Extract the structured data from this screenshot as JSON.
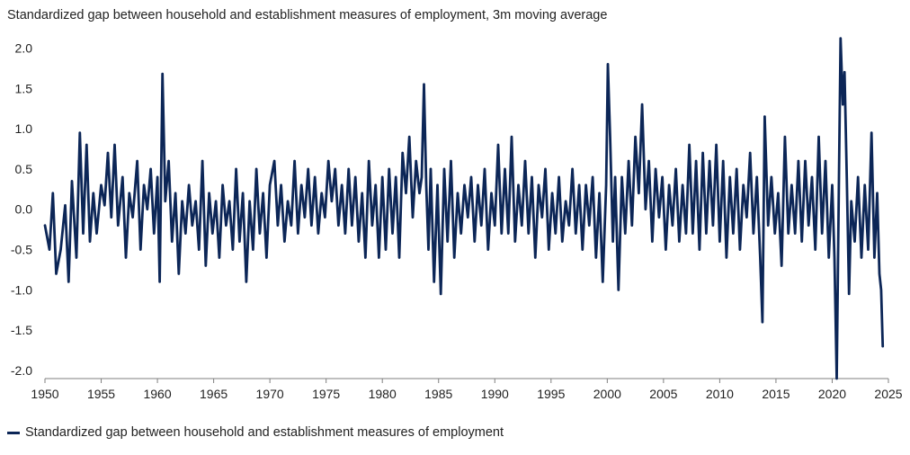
{
  "chart_data": {
    "type": "line",
    "title": "Standardized gap between household and establishment measures of employment, 3m moving average",
    "xlabel": "",
    "ylabel": "",
    "xlim": [
      1950,
      2025
    ],
    "ylim": [
      -2.1,
      2.15
    ],
    "grid": false,
    "x_ticks": [
      "1950",
      "1955",
      "1960",
      "1965",
      "1970",
      "1975",
      "1980",
      "1985",
      "1990",
      "1995",
      "2000",
      "2005",
      "2010",
      "2015",
      "2020",
      "2025"
    ],
    "y_ticks": [
      "2.0",
      "1.5",
      "1.0",
      "0.5",
      "0.0",
      "-0.5",
      "-1.0",
      "-1.5",
      "-2.0"
    ],
    "legend_position": "bottom-left",
    "series": [
      {
        "name": "Standardized gap between household and establishment measures of employment",
        "color": "#0c2657",
        "points": [
          [
            1950.0,
            -0.2
          ],
          [
            1950.4,
            -0.5
          ],
          [
            1950.7,
            0.2
          ],
          [
            1951.0,
            -0.8
          ],
          [
            1951.4,
            -0.5
          ],
          [
            1951.8,
            0.05
          ],
          [
            1952.1,
            -0.9
          ],
          [
            1952.4,
            0.35
          ],
          [
            1952.8,
            -0.6
          ],
          [
            1953.1,
            0.95
          ],
          [
            1953.4,
            -0.3
          ],
          [
            1953.7,
            0.8
          ],
          [
            1954.0,
            -0.4
          ],
          [
            1954.3,
            0.2
          ],
          [
            1954.6,
            -0.3
          ],
          [
            1955.0,
            0.3
          ],
          [
            1955.3,
            0.05
          ],
          [
            1955.6,
            0.7
          ],
          [
            1955.9,
            -0.1
          ],
          [
            1956.2,
            0.8
          ],
          [
            1956.5,
            -0.2
          ],
          [
            1956.9,
            0.4
          ],
          [
            1957.2,
            -0.6
          ],
          [
            1957.5,
            0.2
          ],
          [
            1957.8,
            -0.1
          ],
          [
            1958.2,
            0.6
          ],
          [
            1958.5,
            -0.5
          ],
          [
            1958.8,
            0.3
          ],
          [
            1959.1,
            0.0
          ],
          [
            1959.4,
            0.5
          ],
          [
            1959.7,
            -0.3
          ],
          [
            1960.0,
            0.4
          ],
          [
            1960.2,
            -0.9
          ],
          [
            1960.45,
            1.68
          ],
          [
            1960.7,
            0.1
          ],
          [
            1961.0,
            0.6
          ],
          [
            1961.3,
            -0.4
          ],
          [
            1961.6,
            0.2
          ],
          [
            1961.9,
            -0.8
          ],
          [
            1962.2,
            0.1
          ],
          [
            1962.5,
            -0.3
          ],
          [
            1962.8,
            0.3
          ],
          [
            1963.1,
            -0.2
          ],
          [
            1963.4,
            0.1
          ],
          [
            1963.7,
            -0.5
          ],
          [
            1964.0,
            0.6
          ],
          [
            1964.3,
            -0.7
          ],
          [
            1964.6,
            0.2
          ],
          [
            1964.9,
            -0.3
          ],
          [
            1965.2,
            0.1
          ],
          [
            1965.5,
            -0.6
          ],
          [
            1965.8,
            0.3
          ],
          [
            1966.1,
            -0.2
          ],
          [
            1966.4,
            0.1
          ],
          [
            1966.7,
            -0.5
          ],
          [
            1967.0,
            0.5
          ],
          [
            1967.3,
            -0.4
          ],
          [
            1967.6,
            0.2
          ],
          [
            1967.9,
            -0.9
          ],
          [
            1968.2,
            0.1
          ],
          [
            1968.5,
            -0.5
          ],
          [
            1968.8,
            0.5
          ],
          [
            1969.1,
            -0.3
          ],
          [
            1969.4,
            0.2
          ],
          [
            1969.7,
            -0.6
          ],
          [
            1970.0,
            0.3
          ],
          [
            1970.4,
            0.6
          ],
          [
            1970.7,
            -0.2
          ],
          [
            1971.0,
            0.3
          ],
          [
            1971.3,
            -0.4
          ],
          [
            1971.6,
            0.1
          ],
          [
            1971.9,
            -0.2
          ],
          [
            1972.2,
            0.6
          ],
          [
            1972.5,
            -0.3
          ],
          [
            1972.8,
            0.3
          ],
          [
            1973.1,
            -0.1
          ],
          [
            1973.4,
            0.5
          ],
          [
            1973.7,
            -0.2
          ],
          [
            1974.0,
            0.4
          ],
          [
            1974.3,
            -0.3
          ],
          [
            1974.6,
            0.2
          ],
          [
            1974.9,
            -0.1
          ],
          [
            1975.2,
            0.6
          ],
          [
            1975.5,
            0.1
          ],
          [
            1975.8,
            0.5
          ],
          [
            1976.1,
            -0.2
          ],
          [
            1976.4,
            0.3
          ],
          [
            1976.7,
            -0.3
          ],
          [
            1977.0,
            0.5
          ],
          [
            1977.3,
            -0.2
          ],
          [
            1977.6,
            0.4
          ],
          [
            1977.9,
            -0.4
          ],
          [
            1978.2,
            0.2
          ],
          [
            1978.5,
            -0.6
          ],
          [
            1978.8,
            0.6
          ],
          [
            1979.1,
            -0.2
          ],
          [
            1979.4,
            0.3
          ],
          [
            1979.7,
            -0.6
          ],
          [
            1980.0,
            0.4
          ],
          [
            1980.3,
            -0.5
          ],
          [
            1980.6,
            0.5
          ],
          [
            1980.9,
            -0.3
          ],
          [
            1981.2,
            0.4
          ],
          [
            1981.5,
            -0.6
          ],
          [
            1981.8,
            0.7
          ],
          [
            1982.1,
            0.2
          ],
          [
            1982.4,
            0.9
          ],
          [
            1982.7,
            -0.1
          ],
          [
            1983.0,
            0.6
          ],
          [
            1983.3,
            0.2
          ],
          [
            1983.5,
            0.4
          ],
          [
            1983.7,
            1.55
          ],
          [
            1983.9,
            0.3
          ],
          [
            1984.1,
            -0.5
          ],
          [
            1984.3,
            0.5
          ],
          [
            1984.6,
            -0.9
          ],
          [
            1984.9,
            0.3
          ],
          [
            1985.2,
            -1.05
          ],
          [
            1985.5,
            0.5
          ],
          [
            1985.8,
            -0.4
          ],
          [
            1986.1,
            0.6
          ],
          [
            1986.4,
            -0.6
          ],
          [
            1986.7,
            0.2
          ],
          [
            1987.0,
            -0.3
          ],
          [
            1987.3,
            0.3
          ],
          [
            1987.6,
            -0.1
          ],
          [
            1987.9,
            0.4
          ],
          [
            1988.2,
            -0.4
          ],
          [
            1988.5,
            0.3
          ],
          [
            1988.8,
            -0.2
          ],
          [
            1989.1,
            0.5
          ],
          [
            1989.4,
            -0.5
          ],
          [
            1989.7,
            0.2
          ],
          [
            1990.0,
            -0.2
          ],
          [
            1990.3,
            0.8
          ],
          [
            1990.6,
            -0.3
          ],
          [
            1990.9,
            0.5
          ],
          [
            1991.2,
            -0.3
          ],
          [
            1991.5,
            0.9
          ],
          [
            1991.8,
            -0.4
          ],
          [
            1992.1,
            0.3
          ],
          [
            1992.4,
            -0.2
          ],
          [
            1992.7,
            0.6
          ],
          [
            1993.0,
            -0.3
          ],
          [
            1993.3,
            0.4
          ],
          [
            1993.6,
            -0.6
          ],
          [
            1993.9,
            0.3
          ],
          [
            1994.2,
            -0.1
          ],
          [
            1994.5,
            0.5
          ],
          [
            1994.8,
            -0.5
          ],
          [
            1995.1,
            0.2
          ],
          [
            1995.4,
            -0.3
          ],
          [
            1995.7,
            0.4
          ],
          [
            1996.0,
            -0.4
          ],
          [
            1996.3,
            0.1
          ],
          [
            1996.6,
            -0.2
          ],
          [
            1996.9,
            0.5
          ],
          [
            1997.2,
            -0.3
          ],
          [
            1997.5,
            0.3
          ],
          [
            1997.8,
            -0.5
          ],
          [
            1998.1,
            0.3
          ],
          [
            1998.4,
            -0.2
          ],
          [
            1998.7,
            0.4
          ],
          [
            1999.0,
            -0.6
          ],
          [
            1999.3,
            0.2
          ],
          [
            1999.6,
            -0.9
          ],
          [
            1999.9,
            0.3
          ],
          [
            2000.05,
            1.8
          ],
          [
            2000.25,
            0.9
          ],
          [
            2000.5,
            -0.4
          ],
          [
            2000.7,
            0.4
          ],
          [
            2001.0,
            -1.0
          ],
          [
            2001.3,
            0.4
          ],
          [
            2001.6,
            -0.3
          ],
          [
            2001.9,
            0.6
          ],
          [
            2002.2,
            -0.2
          ],
          [
            2002.5,
            0.9
          ],
          [
            2002.8,
            0.2
          ],
          [
            2003.1,
            1.3
          ],
          [
            2003.4,
            0.0
          ],
          [
            2003.7,
            0.6
          ],
          [
            2004.0,
            -0.4
          ],
          [
            2004.3,
            0.5
          ],
          [
            2004.6,
            -0.1
          ],
          [
            2004.9,
            0.4
          ],
          [
            2005.2,
            -0.5
          ],
          [
            2005.5,
            0.3
          ],
          [
            2005.8,
            -0.2
          ],
          [
            2006.1,
            0.5
          ],
          [
            2006.4,
            -0.4
          ],
          [
            2006.7,
            0.3
          ],
          [
            2007.0,
            -0.3
          ],
          [
            2007.3,
            0.8
          ],
          [
            2007.6,
            -0.3
          ],
          [
            2007.9,
            0.6
          ],
          [
            2008.2,
            -0.5
          ],
          [
            2008.5,
            0.7
          ],
          [
            2008.8,
            -0.3
          ],
          [
            2009.1,
            0.6
          ],
          [
            2009.4,
            -0.2
          ],
          [
            2009.7,
            0.8
          ],
          [
            2010.0,
            -0.4
          ],
          [
            2010.3,
            0.6
          ],
          [
            2010.6,
            -0.6
          ],
          [
            2010.9,
            0.4
          ],
          [
            2011.2,
            -0.3
          ],
          [
            2011.5,
            0.5
          ],
          [
            2011.8,
            -0.5
          ],
          [
            2012.1,
            0.3
          ],
          [
            2012.4,
            -0.1
          ],
          [
            2012.7,
            0.7
          ],
          [
            2013.0,
            -0.3
          ],
          [
            2013.3,
            0.4
          ],
          [
            2013.6,
            -0.6
          ],
          [
            2013.8,
            -1.4
          ],
          [
            2014.0,
            1.15
          ],
          [
            2014.3,
            -0.2
          ],
          [
            2014.6,
            0.4
          ],
          [
            2014.9,
            -0.3
          ],
          [
            2015.2,
            0.2
          ],
          [
            2015.5,
            -0.7
          ],
          [
            2015.8,
            0.9
          ],
          [
            2016.1,
            -0.3
          ],
          [
            2016.4,
            0.3
          ],
          [
            2016.7,
            -0.3
          ],
          [
            2017.0,
            0.6
          ],
          [
            2017.3,
            -0.4
          ],
          [
            2017.6,
            0.6
          ],
          [
            2017.9,
            -0.2
          ],
          [
            2018.2,
            0.4
          ],
          [
            2018.5,
            -0.5
          ],
          [
            2018.8,
            0.9
          ],
          [
            2019.1,
            -0.3
          ],
          [
            2019.4,
            0.6
          ],
          [
            2019.7,
            -0.6
          ],
          [
            2020.0,
            0.3
          ],
          [
            2020.2,
            -0.6
          ],
          [
            2020.4,
            -2.1
          ],
          [
            2020.6,
            0.4
          ],
          [
            2020.75,
            2.12
          ],
          [
            2020.95,
            1.3
          ],
          [
            2021.1,
            1.7
          ],
          [
            2021.3,
            0.4
          ],
          [
            2021.5,
            -1.05
          ],
          [
            2021.7,
            0.1
          ],
          [
            2022.0,
            -0.4
          ],
          [
            2022.3,
            0.4
          ],
          [
            2022.6,
            -0.6
          ],
          [
            2022.9,
            0.3
          ],
          [
            2023.2,
            -0.5
          ],
          [
            2023.5,
            0.95
          ],
          [
            2023.75,
            -0.6
          ],
          [
            2024.0,
            0.2
          ],
          [
            2024.2,
            -0.8
          ],
          [
            2024.35,
            -1.0
          ],
          [
            2024.5,
            -1.7
          ]
        ]
      }
    ]
  }
}
